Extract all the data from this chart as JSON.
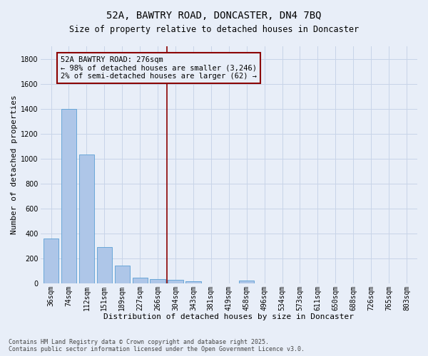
{
  "title_line1": "52A, BAWTRY ROAD, DONCASTER, DN4 7BQ",
  "title_line2": "Size of property relative to detached houses in Doncaster",
  "xlabel": "Distribution of detached houses by size in Doncaster",
  "ylabel": "Number of detached properties",
  "categories": [
    "36sqm",
    "74sqm",
    "112sqm",
    "151sqm",
    "189sqm",
    "227sqm",
    "266sqm",
    "304sqm",
    "343sqm",
    "381sqm",
    "419sqm",
    "458sqm",
    "496sqm",
    "534sqm",
    "573sqm",
    "611sqm",
    "650sqm",
    "688sqm",
    "726sqm",
    "765sqm",
    "803sqm"
  ],
  "values": [
    360,
    1400,
    1030,
    290,
    140,
    42,
    35,
    25,
    18,
    0,
    0,
    20,
    0,
    0,
    0,
    0,
    0,
    0,
    0,
    0,
    0
  ],
  "bar_color": "#aec6e8",
  "bar_edge_color": "#5a9fd4",
  "vline_index": 6.5,
  "vline_color": "#8b0000",
  "annotation_text": "52A BAWTRY ROAD: 276sqm\n← 98% of detached houses are smaller (3,246)\n2% of semi-detached houses are larger (62) →",
  "annotation_box_color": "#8b0000",
  "annotation_bg": "#e8eef8",
  "ylim": [
    0,
    1900
  ],
  "yticks": [
    0,
    200,
    400,
    600,
    800,
    1000,
    1200,
    1400,
    1600,
    1800
  ],
  "grid_color": "#c8d4e8",
  "background_color": "#e8eef8",
  "footer_line1": "Contains HM Land Registry data © Crown copyright and database right 2025.",
  "footer_line2": "Contains public sector information licensed under the Open Government Licence v3.0.",
  "title_fontsize": 10,
  "subtitle_fontsize": 8.5,
  "axis_label_fontsize": 8,
  "tick_fontsize": 7,
  "annotation_fontsize": 7.5,
  "footer_fontsize": 6
}
